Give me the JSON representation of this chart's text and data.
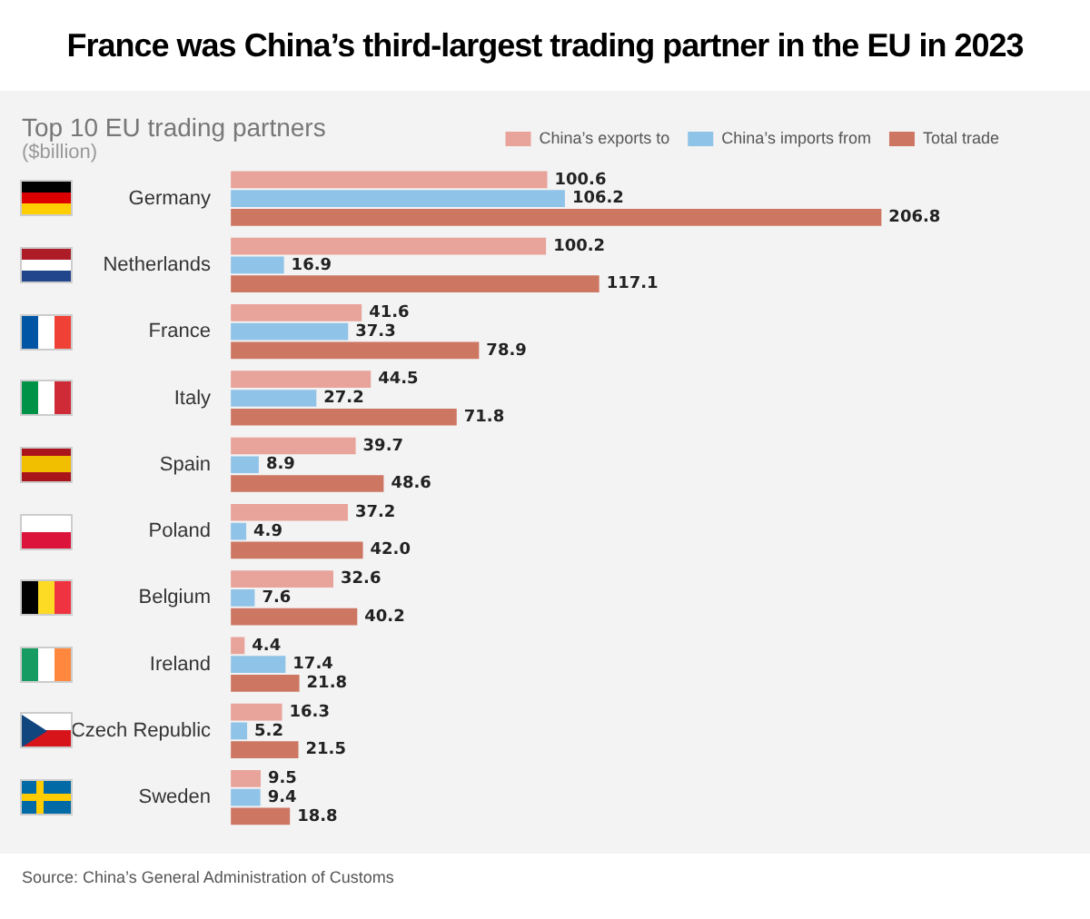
{
  "chart_data": {
    "type": "bar",
    "orientation": "horizontal",
    "title": "France was China’s third-largest trading partner in the EU in 2023",
    "subtitle": "Top 10 EU trading partners",
    "xlabel": "($billion)",
    "categories": [
      "Germany",
      "Netherlands",
      "France",
      "Italy",
      "Spain",
      "Poland",
      "Belgium",
      "Ireland",
      "Czech Republic",
      "Sweden"
    ],
    "series": [
      {
        "name": "China’s exports to",
        "color": "#e8a39a",
        "values": [
          100.6,
          100.2,
          41.6,
          44.5,
          39.7,
          37.2,
          32.6,
          4.4,
          16.3,
          9.5
        ],
        "value_labels": [
          "100.6",
          "100.2",
          "41.6",
          "44.5",
          "39.7",
          "37.2",
          "32.6",
          "4.4",
          "16.3",
          "9.5"
        ]
      },
      {
        "name": "China’s imports from",
        "color": "#90c3e8",
        "values": [
          106.2,
          16.9,
          37.3,
          27.2,
          8.9,
          4.9,
          7.6,
          17.4,
          5.2,
          9.4
        ],
        "value_labels": [
          "106.2",
          "16.9",
          "37.3",
          "27.2",
          "8.9",
          "4.9",
          "7.6",
          "17.4",
          "5.2",
          "9.4"
        ]
      },
      {
        "name": "Total trade",
        "color": "#cd7763",
        "values": [
          206.8,
          117.1,
          78.9,
          71.8,
          48.6,
          42.0,
          40.2,
          21.8,
          21.5,
          18.8
        ],
        "value_labels": [
          "206.8",
          "117.1",
          "78.9",
          "71.8",
          "48.6",
          "42.0",
          "40.2",
          "21.8",
          "21.5",
          "18.8"
        ]
      }
    ],
    "legend": "top right",
    "grid": false,
    "annotations": [
      "Source: China’s General Administration of Customs"
    ]
  }
}
